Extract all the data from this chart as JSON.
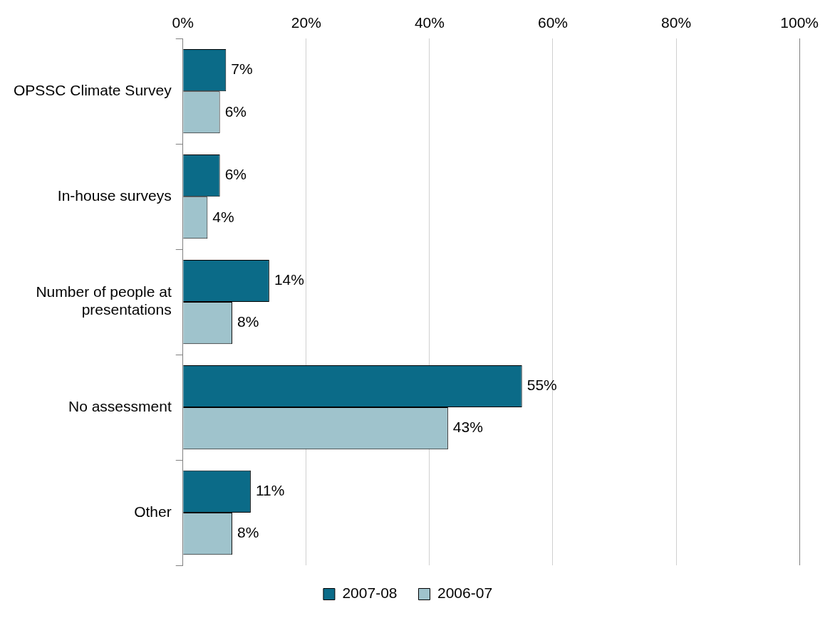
{
  "chart_data": {
    "type": "bar",
    "orientation": "horizontal",
    "categories": [
      "OPSSC Climate Survey",
      "In-house surveys",
      "Number of people at presentations",
      "No assessment",
      "Other"
    ],
    "series": [
      {
        "name": "2007-08",
        "color": "#0b6b88",
        "values": [
          7,
          6,
          14,
          55,
          11
        ],
        "value_labels": [
          "7%",
          "6%",
          "14%",
          "55%",
          "11%"
        ]
      },
      {
        "name": "2006-07",
        "color": "#9fc3cc",
        "values": [
          6,
          4,
          8,
          43,
          8
        ],
        "value_labels": [
          "6%",
          "4%",
          "8%",
          "43%",
          "8%"
        ]
      }
    ],
    "xlim": [
      0,
      100
    ],
    "xticks": [
      {
        "value": 0,
        "label": "0%"
      },
      {
        "value": 20,
        "label": "20%"
      },
      {
        "value": 40,
        "label": "40%"
      },
      {
        "value": 60,
        "label": "60%"
      },
      {
        "value": 80,
        "label": "80%"
      },
      {
        "value": 100,
        "label": "100%"
      }
    ],
    "grid": "x",
    "legend": "bottom"
  }
}
